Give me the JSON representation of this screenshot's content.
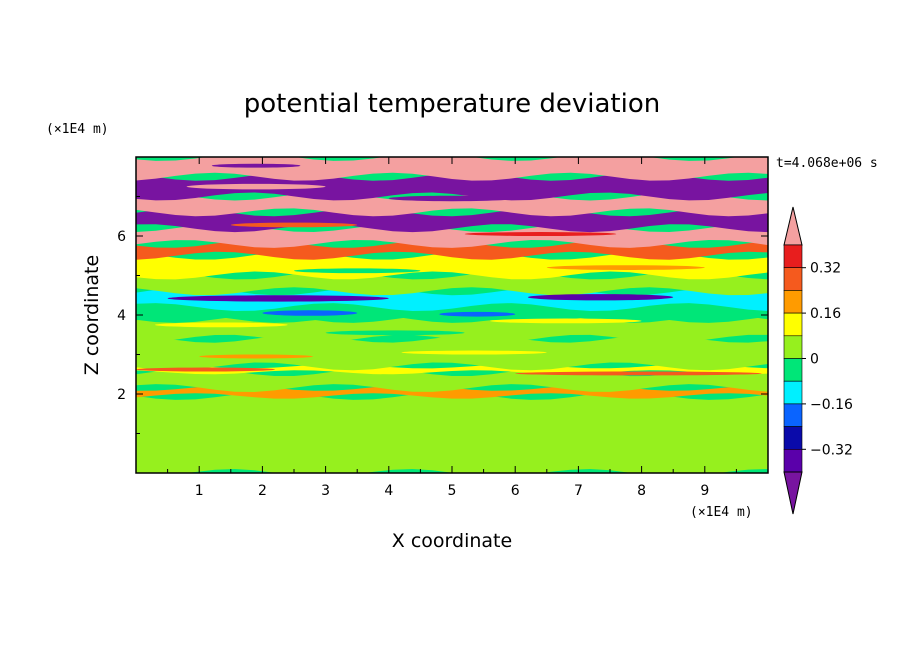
{
  "chart_data": {
    "type": "heatmap",
    "title": "potential temperature deviation",
    "xlabel": "X coordinate",
    "ylabel": "Z coordinate",
    "x_unit": "(×1E4 m)",
    "y_unit": "(×1E4 m)",
    "time_label": "t=4.068e+06 s",
    "xlim": [
      0,
      10
    ],
    "ylim": [
      0,
      8
    ],
    "x_ticks": [
      "1",
      "2",
      "3",
      "4",
      "5",
      "6",
      "7",
      "8",
      "9"
    ],
    "y_ticks": [
      "2",
      "4",
      "6"
    ],
    "colorbar": {
      "levels": [
        -0.4,
        -0.32,
        -0.24,
        -0.16,
        -0.08,
        0,
        0.08,
        0.16,
        0.24,
        0.32,
        0.4
      ],
      "tick_labels": [
        "0.32",
        "0.16",
        "0",
        "−0.16",
        "−0.32"
      ],
      "tick_values": [
        0.32,
        0.16,
        0,
        -0.16,
        -0.32
      ],
      "colors_top_to_bottom": [
        "#f4a0a0",
        "#e81e1e",
        "#f55a1e",
        "#ff9b00",
        "#ffff00",
        "#96f01e",
        "#00e678",
        "#00f0ff",
        "#0a64ff",
        "#0a0aaa",
        "#5a00aa",
        "#7814a0"
      ]
    },
    "bands": [
      {
        "z": [
          0.0,
          1.95
        ],
        "value": 0.02
      },
      {
        "z": [
          1.95,
          2.15
        ],
        "value": 0.22
      },
      {
        "z": [
          2.15,
          2.55
        ],
        "value": 0.04
      },
      {
        "z": [
          2.55,
          2.7
        ],
        "value": 0.14
      },
      {
        "z": [
          2.7,
          3.4
        ],
        "value": 0.03
      },
      {
        "z": [
          3.4,
          3.9
        ],
        "value": 0.05
      },
      {
        "z": [
          3.9,
          4.2
        ],
        "value": -0.06
      },
      {
        "z": [
          4.2,
          4.6
        ],
        "value": -0.1
      },
      {
        "z": [
          4.6,
          5.0
        ],
        "value": 0.04
      },
      {
        "z": [
          5.0,
          5.5
        ],
        "value": 0.08
      },
      {
        "z": [
          5.5,
          5.8
        ],
        "value": 0.3
      },
      {
        "z": [
          5.8,
          6.2
        ],
        "value": 0.42
      },
      {
        "z": [
          6.2,
          6.6
        ],
        "value": -0.42
      },
      {
        "z": [
          6.6,
          7.0
        ],
        "value": 0.42
      },
      {
        "z": [
          7.0,
          7.5
        ],
        "value": -0.42
      },
      {
        "z": [
          7.5,
          8.0
        ],
        "value": 0.42
      }
    ]
  }
}
